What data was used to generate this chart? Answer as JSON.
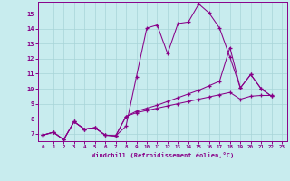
{
  "bg_color": "#c8ecee",
  "grid_color": "#a8d4d8",
  "line_color": "#880088",
  "xlim_min": -0.5,
  "xlim_max": 23.5,
  "ylim_min": 6.5,
  "ylim_max": 15.8,
  "xticks": [
    0,
    1,
    2,
    3,
    4,
    5,
    6,
    7,
    8,
    9,
    10,
    11,
    12,
    13,
    14,
    15,
    16,
    17,
    18,
    19,
    20,
    21,
    22,
    23
  ],
  "yticks": [
    7,
    8,
    9,
    10,
    11,
    12,
    13,
    14,
    15
  ],
  "xlabel": "Windchill (Refroidissement éolien,°C)",
  "line1_x": [
    0,
    1,
    2,
    3,
    4,
    5,
    6,
    7,
    8,
    9,
    10,
    11,
    12,
    13,
    14,
    15,
    16,
    17,
    18,
    19,
    20,
    21,
    22
  ],
  "line1_y": [
    6.9,
    7.1,
    6.6,
    7.8,
    7.3,
    7.4,
    6.9,
    6.85,
    7.5,
    10.8,
    14.05,
    14.25,
    12.35,
    14.35,
    14.45,
    15.65,
    15.05,
    14.05,
    12.1,
    10.05,
    10.95,
    10.0,
    9.5
  ],
  "line2_x": [
    0,
    1,
    2,
    3,
    4,
    5,
    6,
    7,
    8,
    9,
    10,
    11,
    12,
    13,
    14,
    15,
    16,
    17,
    18,
    19,
    20,
    21,
    22
  ],
  "line2_y": [
    6.9,
    7.1,
    6.6,
    7.8,
    7.3,
    7.4,
    6.9,
    6.85,
    8.15,
    8.5,
    8.7,
    8.9,
    9.15,
    9.4,
    9.65,
    9.9,
    10.2,
    10.5,
    12.75,
    10.05,
    10.95,
    10.0,
    9.5
  ],
  "line3_x": [
    0,
    1,
    2,
    3,
    4,
    5,
    6,
    7,
    8,
    9,
    10,
    11,
    12,
    13,
    14,
    15,
    16,
    17,
    18,
    19,
    20,
    21,
    22
  ],
  "line3_y": [
    6.9,
    7.1,
    6.6,
    7.8,
    7.3,
    7.4,
    6.9,
    6.85,
    8.15,
    8.4,
    8.55,
    8.7,
    8.85,
    9.0,
    9.15,
    9.3,
    9.45,
    9.6,
    9.75,
    9.3,
    9.5,
    9.55,
    9.55
  ]
}
